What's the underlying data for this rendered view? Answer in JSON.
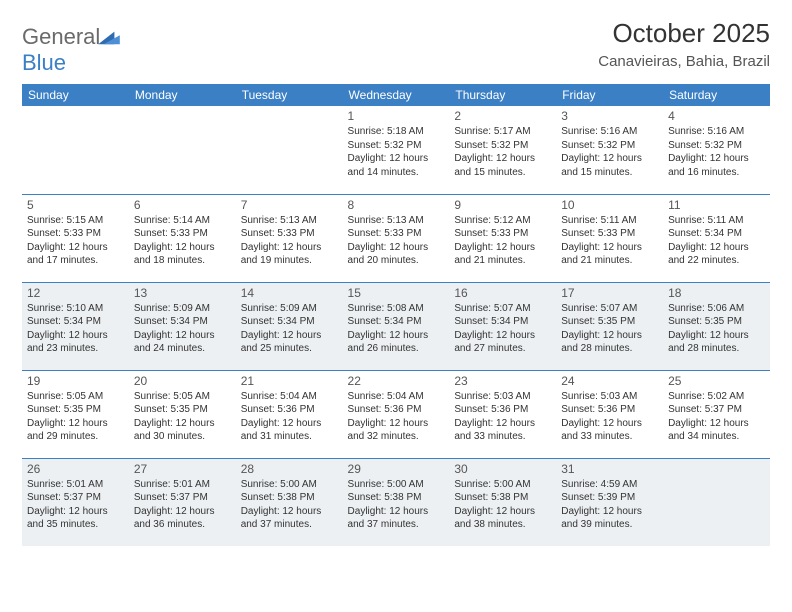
{
  "brand": {
    "part1": "General",
    "part2": "Blue"
  },
  "title": "October 2025",
  "location": "Canavieiras, Bahia, Brazil",
  "colors": {
    "header_bg": "#3b7fc4",
    "header_text": "#ffffff",
    "alt_row_bg": "#edf0f2",
    "border": "#3b7fc4",
    "text": "#333333",
    "muted": "#555555",
    "logo_gray": "#6a6a6a"
  },
  "weekdays": [
    "Sunday",
    "Monday",
    "Tuesday",
    "Wednesday",
    "Thursday",
    "Friday",
    "Saturday"
  ],
  "cells": [
    {
      "day": "",
      "sunrise": "",
      "sunset": "",
      "daylight1": "",
      "daylight2": ""
    },
    {
      "day": "",
      "sunrise": "",
      "sunset": "",
      "daylight1": "",
      "daylight2": ""
    },
    {
      "day": "",
      "sunrise": "",
      "sunset": "",
      "daylight1": "",
      "daylight2": ""
    },
    {
      "day": "1",
      "sunrise": "Sunrise: 5:18 AM",
      "sunset": "Sunset: 5:32 PM",
      "daylight1": "Daylight: 12 hours",
      "daylight2": "and 14 minutes."
    },
    {
      "day": "2",
      "sunrise": "Sunrise: 5:17 AM",
      "sunset": "Sunset: 5:32 PM",
      "daylight1": "Daylight: 12 hours",
      "daylight2": "and 15 minutes."
    },
    {
      "day": "3",
      "sunrise": "Sunrise: 5:16 AM",
      "sunset": "Sunset: 5:32 PM",
      "daylight1": "Daylight: 12 hours",
      "daylight2": "and 15 minutes."
    },
    {
      "day": "4",
      "sunrise": "Sunrise: 5:16 AM",
      "sunset": "Sunset: 5:32 PM",
      "daylight1": "Daylight: 12 hours",
      "daylight2": "and 16 minutes."
    },
    {
      "day": "5",
      "sunrise": "Sunrise: 5:15 AM",
      "sunset": "Sunset: 5:33 PM",
      "daylight1": "Daylight: 12 hours",
      "daylight2": "and 17 minutes."
    },
    {
      "day": "6",
      "sunrise": "Sunrise: 5:14 AM",
      "sunset": "Sunset: 5:33 PM",
      "daylight1": "Daylight: 12 hours",
      "daylight2": "and 18 minutes."
    },
    {
      "day": "7",
      "sunrise": "Sunrise: 5:13 AM",
      "sunset": "Sunset: 5:33 PM",
      "daylight1": "Daylight: 12 hours",
      "daylight2": "and 19 minutes."
    },
    {
      "day": "8",
      "sunrise": "Sunrise: 5:13 AM",
      "sunset": "Sunset: 5:33 PM",
      "daylight1": "Daylight: 12 hours",
      "daylight2": "and 20 minutes."
    },
    {
      "day": "9",
      "sunrise": "Sunrise: 5:12 AM",
      "sunset": "Sunset: 5:33 PM",
      "daylight1": "Daylight: 12 hours",
      "daylight2": "and 21 minutes."
    },
    {
      "day": "10",
      "sunrise": "Sunrise: 5:11 AM",
      "sunset": "Sunset: 5:33 PM",
      "daylight1": "Daylight: 12 hours",
      "daylight2": "and 21 minutes."
    },
    {
      "day": "11",
      "sunrise": "Sunrise: 5:11 AM",
      "sunset": "Sunset: 5:34 PM",
      "daylight1": "Daylight: 12 hours",
      "daylight2": "and 22 minutes."
    },
    {
      "day": "12",
      "sunrise": "Sunrise: 5:10 AM",
      "sunset": "Sunset: 5:34 PM",
      "daylight1": "Daylight: 12 hours",
      "daylight2": "and 23 minutes."
    },
    {
      "day": "13",
      "sunrise": "Sunrise: 5:09 AM",
      "sunset": "Sunset: 5:34 PM",
      "daylight1": "Daylight: 12 hours",
      "daylight2": "and 24 minutes."
    },
    {
      "day": "14",
      "sunrise": "Sunrise: 5:09 AM",
      "sunset": "Sunset: 5:34 PM",
      "daylight1": "Daylight: 12 hours",
      "daylight2": "and 25 minutes."
    },
    {
      "day": "15",
      "sunrise": "Sunrise: 5:08 AM",
      "sunset": "Sunset: 5:34 PM",
      "daylight1": "Daylight: 12 hours",
      "daylight2": "and 26 minutes."
    },
    {
      "day": "16",
      "sunrise": "Sunrise: 5:07 AM",
      "sunset": "Sunset: 5:34 PM",
      "daylight1": "Daylight: 12 hours",
      "daylight2": "and 27 minutes."
    },
    {
      "day": "17",
      "sunrise": "Sunrise: 5:07 AM",
      "sunset": "Sunset: 5:35 PM",
      "daylight1": "Daylight: 12 hours",
      "daylight2": "and 28 minutes."
    },
    {
      "day": "18",
      "sunrise": "Sunrise: 5:06 AM",
      "sunset": "Sunset: 5:35 PM",
      "daylight1": "Daylight: 12 hours",
      "daylight2": "and 28 minutes."
    },
    {
      "day": "19",
      "sunrise": "Sunrise: 5:05 AM",
      "sunset": "Sunset: 5:35 PM",
      "daylight1": "Daylight: 12 hours",
      "daylight2": "and 29 minutes."
    },
    {
      "day": "20",
      "sunrise": "Sunrise: 5:05 AM",
      "sunset": "Sunset: 5:35 PM",
      "daylight1": "Daylight: 12 hours",
      "daylight2": "and 30 minutes."
    },
    {
      "day": "21",
      "sunrise": "Sunrise: 5:04 AM",
      "sunset": "Sunset: 5:36 PM",
      "daylight1": "Daylight: 12 hours",
      "daylight2": "and 31 minutes."
    },
    {
      "day": "22",
      "sunrise": "Sunrise: 5:04 AM",
      "sunset": "Sunset: 5:36 PM",
      "daylight1": "Daylight: 12 hours",
      "daylight2": "and 32 minutes."
    },
    {
      "day": "23",
      "sunrise": "Sunrise: 5:03 AM",
      "sunset": "Sunset: 5:36 PM",
      "daylight1": "Daylight: 12 hours",
      "daylight2": "and 33 minutes."
    },
    {
      "day": "24",
      "sunrise": "Sunrise: 5:03 AM",
      "sunset": "Sunset: 5:36 PM",
      "daylight1": "Daylight: 12 hours",
      "daylight2": "and 33 minutes."
    },
    {
      "day": "25",
      "sunrise": "Sunrise: 5:02 AM",
      "sunset": "Sunset: 5:37 PM",
      "daylight1": "Daylight: 12 hours",
      "daylight2": "and 34 minutes."
    },
    {
      "day": "26",
      "sunrise": "Sunrise: 5:01 AM",
      "sunset": "Sunset: 5:37 PM",
      "daylight1": "Daylight: 12 hours",
      "daylight2": "and 35 minutes."
    },
    {
      "day": "27",
      "sunrise": "Sunrise: 5:01 AM",
      "sunset": "Sunset: 5:37 PM",
      "daylight1": "Daylight: 12 hours",
      "daylight2": "and 36 minutes."
    },
    {
      "day": "28",
      "sunrise": "Sunrise: 5:00 AM",
      "sunset": "Sunset: 5:38 PM",
      "daylight1": "Daylight: 12 hours",
      "daylight2": "and 37 minutes."
    },
    {
      "day": "29",
      "sunrise": "Sunrise: 5:00 AM",
      "sunset": "Sunset: 5:38 PM",
      "daylight1": "Daylight: 12 hours",
      "daylight2": "and 37 minutes."
    },
    {
      "day": "30",
      "sunrise": "Sunrise: 5:00 AM",
      "sunset": "Sunset: 5:38 PM",
      "daylight1": "Daylight: 12 hours",
      "daylight2": "and 38 minutes."
    },
    {
      "day": "31",
      "sunrise": "Sunrise: 4:59 AM",
      "sunset": "Sunset: 5:39 PM",
      "daylight1": "Daylight: 12 hours",
      "daylight2": "and 39 minutes."
    },
    {
      "day": "",
      "sunrise": "",
      "sunset": "",
      "daylight1": "",
      "daylight2": ""
    }
  ]
}
